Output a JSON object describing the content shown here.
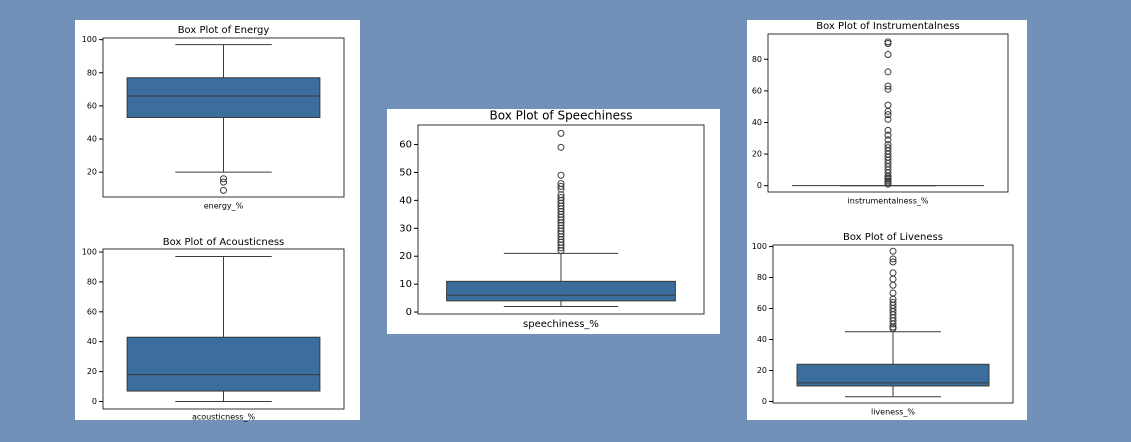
{
  "chart_data": [
    {
      "type": "box",
      "title": "Box Plot of Energy",
      "xlabel": "energy_%",
      "color": "#3b6e9c",
      "min": 20,
      "q1": 53,
      "median": 66,
      "q3": 77,
      "max": 97,
      "outliers": [
        16,
        14,
        9
      ],
      "ylim": [
        5,
        101
      ],
      "yticks": [
        20,
        40,
        60,
        80,
        100
      ]
    },
    {
      "type": "box",
      "title": "Box Plot of Acousticness",
      "xlabel": "acousticness_%",
      "color": "#3b6e9c",
      "min": 0,
      "q1": 7,
      "median": 18,
      "q3": 43,
      "max": 97,
      "outliers": [],
      "ylim": [
        -5,
        102
      ],
      "yticks": [
        0,
        20,
        40,
        60,
        80,
        100
      ]
    },
    {
      "type": "box",
      "title": "Box Plot of Speechiness",
      "xlabel": "speechiness_%",
      "color": "#3b6e9c",
      "min": 2,
      "q1": 4,
      "median": 6,
      "q3": 11,
      "max": 21,
      "outliers": [
        64,
        59,
        49,
        46,
        45,
        44,
        42,
        41,
        40,
        39,
        38,
        37,
        36,
        35,
        34,
        33,
        32,
        31,
        30,
        29,
        28,
        27,
        26,
        25,
        24,
        23,
        22
      ],
      "ylim": [
        -0.7,
        67
      ],
      "yticks": [
        0,
        10,
        20,
        30,
        40,
        50,
        60
      ]
    },
    {
      "type": "box",
      "title": "Box Plot of Instrumentalness",
      "xlabel": "instrumentalness_%",
      "color": "#3b6e9c",
      "min": 0,
      "q1": 0,
      "median": 0,
      "q3": 0,
      "max": 0,
      "outliers": [
        91,
        90,
        83,
        72,
        63,
        61,
        51,
        47,
        45,
        42,
        35,
        32,
        29,
        26,
        24,
        22,
        20,
        18,
        16,
        14,
        12,
        10,
        8,
        6,
        5,
        4,
        3,
        2,
        1
      ],
      "ylim": [
        -4,
        96
      ],
      "yticks": [
        0,
        20,
        40,
        60,
        80
      ]
    },
    {
      "type": "box",
      "title": "Box Plot of Liveness",
      "xlabel": "liveness_%",
      "color": "#3b6e9c",
      "min": 3,
      "q1": 10,
      "median": 12,
      "q3": 24,
      "max": 45,
      "outliers": [
        97,
        92,
        90,
        83,
        79,
        75,
        70,
        66,
        64,
        62,
        60,
        58,
        56,
        54,
        52,
        50,
        48,
        47
      ],
      "ylim": [
        -1,
        101
      ],
      "yticks": [
        0,
        20,
        40,
        60,
        80,
        100
      ]
    }
  ]
}
